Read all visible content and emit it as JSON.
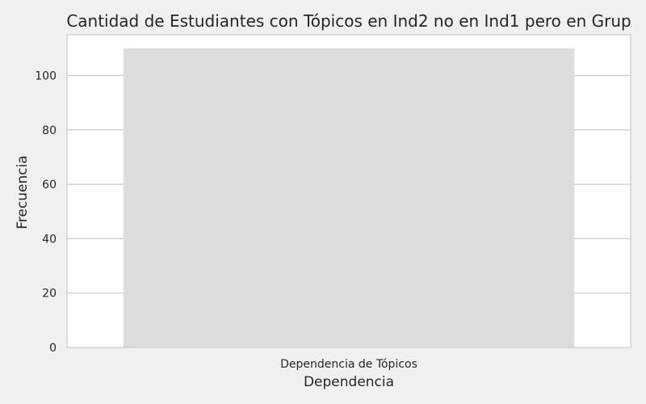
{
  "chart_data": {
    "type": "bar",
    "title": "Cantidad de Estudiantes con Tópicos en Ind2 no en Ind1 pero en Grup",
    "xlabel": "Dependencia",
    "ylabel": "Frecuencia",
    "categories": [
      "Dependencia de Tópicos"
    ],
    "values": [
      110
    ],
    "ylim": [
      0,
      115
    ],
    "yticks": [
      0,
      20,
      40,
      60,
      80,
      100
    ],
    "grid": true,
    "colors": {
      "bar": "#dcdcdc",
      "plot_background": "#ffffff",
      "figure_background": "#f0f0f0",
      "grid": "#cccccc",
      "spine": "#cccccc",
      "text": "#262626"
    }
  }
}
